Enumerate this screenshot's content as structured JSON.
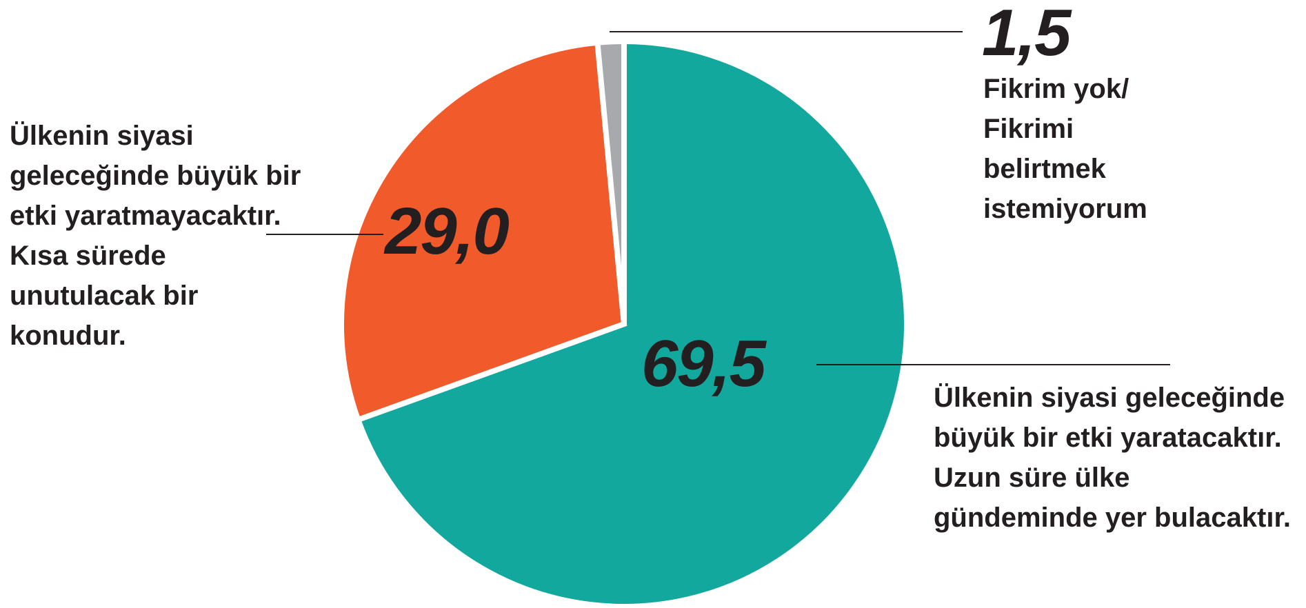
{
  "chart_data": {
    "type": "pie",
    "categories": [
      "Ülkenin siyasi geleceğinde büyük bir etki yaratacaktır. Uzun süre ülke gündeminde yer bulacaktır.",
      "Ülkenin siyasi geleceğinde büyük bir etki yaratmayacaktır. Kısa sürede unutulacak bir konudur.",
      "Fikrim yok/ Fikrimi belirtmek istemiyorum"
    ],
    "values": [
      69.5,
      29.0,
      1.5
    ],
    "value_labels": [
      "69,5",
      "29,0",
      "1,5"
    ],
    "colors": [
      "#13a89e",
      "#f15a2b",
      "#a7a9ac"
    ]
  }
}
